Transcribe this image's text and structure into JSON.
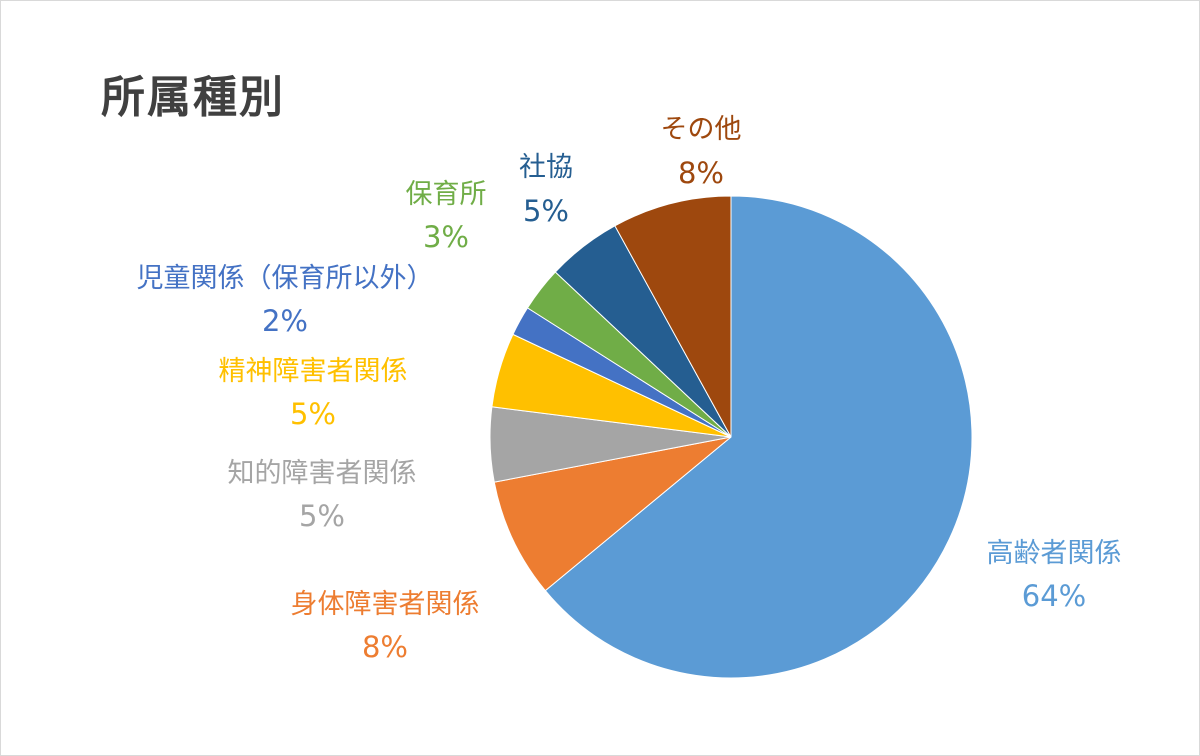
{
  "chart_data": {
    "type": "pie",
    "title": "所属種別",
    "start": "12 o'clock, clockwise",
    "slices": [
      {
        "label": "高齢者関係",
        "value": 64,
        "value_text": "64%",
        "color": "#5B9BD5"
      },
      {
        "label": "身体障害者関係",
        "value": 8,
        "value_text": "8%",
        "color": "#ED7D31"
      },
      {
        "label": "知的障害者関係",
        "value": 5,
        "value_text": "5%",
        "color": "#A5A5A5"
      },
      {
        "label": "精神障害者関係",
        "value": 5,
        "value_text": "5%",
        "color": "#FFC000"
      },
      {
        "label": "児童関係（保育所以外）",
        "value": 2,
        "value_text": "2%",
        "color": "#4472C4"
      },
      {
        "label": "保育所",
        "value": 3,
        "value_text": "3%",
        "color": "#70AD47"
      },
      {
        "label": "社協",
        "value": 5,
        "value_text": "5%",
        "color": "#255E91"
      },
      {
        "label": "その他",
        "value": 8,
        "value_text": "8%",
        "color": "#9E480E"
      }
    ]
  }
}
